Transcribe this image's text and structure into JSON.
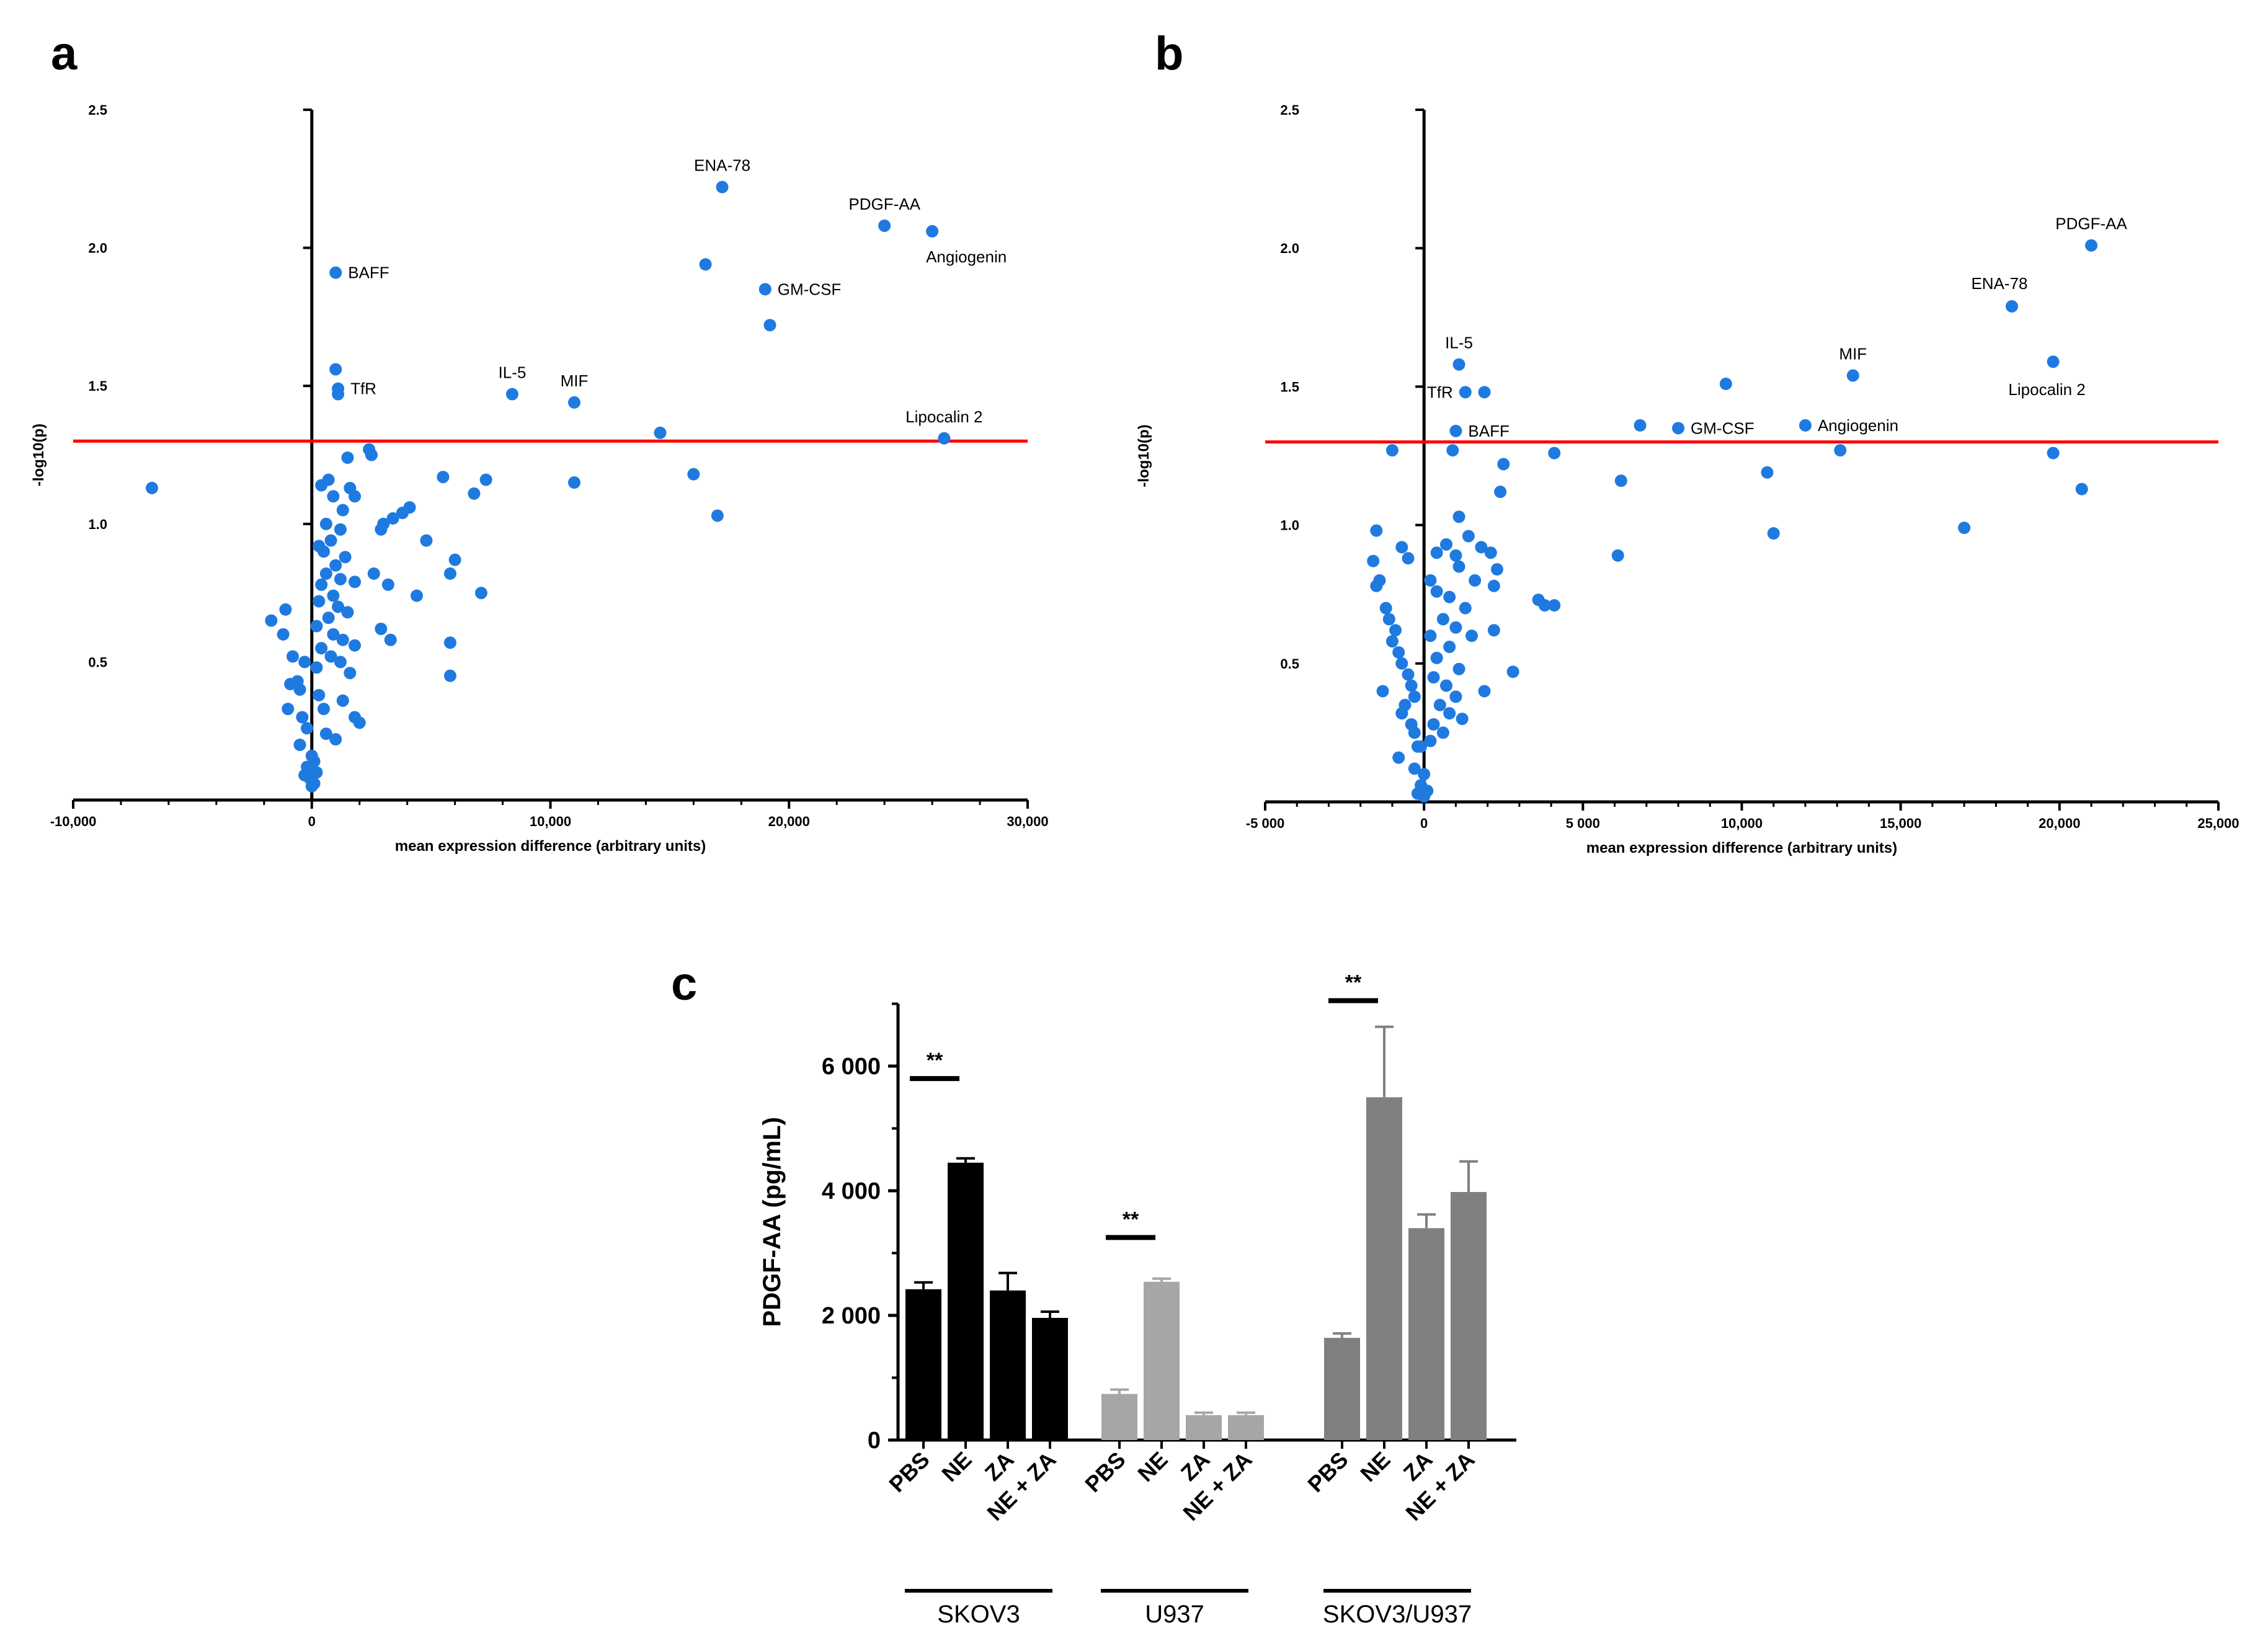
{
  "colors": {
    "point": "#1f7ae0",
    "threshold": "#ff0000",
    "axis": "#000000",
    "bar_skov3": "#000000",
    "bar_u937": "#a6a6a8",
    "bar_mix": "#808080"
  },
  "chart_data": [
    {
      "panel": "a",
      "type": "scatter",
      "xlabel": "mean expression difference (arbitrary units)",
      "ylabel": "-log10(p)",
      "xlim": [
        -10000,
        30000
      ],
      "ylim": [
        0,
        2.5
      ],
      "xticks": [
        -10000,
        0,
        10000,
        20000,
        30000
      ],
      "xtick_labels": [
        "-10,000",
        "0",
        "10,000",
        "20,000",
        "30,000"
      ],
      "yticks": [
        0.5,
        1.0,
        1.5,
        2.0,
        2.5
      ],
      "ytick_labels": [
        "0.5",
        "1.0",
        "1.5",
        "2.0",
        "2.5"
      ],
      "threshold": 1.3,
      "points": [
        [
          17200,
          2.22
        ],
        [
          24000,
          2.08
        ],
        [
          26000,
          2.06
        ],
        [
          1000,
          1.91
        ],
        [
          16500,
          1.94
        ],
        [
          19000,
          1.85
        ],
        [
          19200,
          1.72
        ],
        [
          1000,
          1.56
        ],
        [
          1100,
          1.49
        ],
        [
          1100,
          1.47
        ],
        [
          8400,
          1.47
        ],
        [
          11000,
          1.44
        ],
        [
          14600,
          1.33
        ],
        [
          26500,
          1.31
        ],
        [
          -6700,
          1.13
        ],
        [
          16000,
          1.18
        ],
        [
          17000,
          1.03
        ],
        [
          11000,
          1.15
        ],
        [
          2400,
          1.27
        ],
        [
          2500,
          1.25
        ],
        [
          1500,
          1.24
        ],
        [
          5500,
          1.17
        ],
        [
          7300,
          1.16
        ],
        [
          6800,
          1.11
        ],
        [
          4100,
          1.06
        ],
        [
          3800,
          1.04
        ],
        [
          3400,
          1.02
        ],
        [
          3000,
          1.0
        ],
        [
          2900,
          0.98
        ],
        [
          4800,
          0.94
        ],
        [
          6000,
          0.87
        ],
        [
          5800,
          0.82
        ],
        [
          7100,
          0.75
        ],
        [
          4400,
          0.74
        ],
        [
          3200,
          0.78
        ],
        [
          2600,
          0.82
        ],
        [
          3300,
          0.58
        ],
        [
          5800,
          0.57
        ],
        [
          5800,
          0.45
        ],
        [
          2900,
          0.62
        ],
        [
          2000,
          0.28
        ],
        [
          1800,
          0.3
        ],
        [
          700,
          1.16
        ],
        [
          400,
          1.14
        ],
        [
          900,
          1.1
        ],
        [
          1600,
          1.13
        ],
        [
          1800,
          1.1
        ],
        [
          1300,
          1.05
        ],
        [
          600,
          1.0
        ],
        [
          1200,
          0.98
        ],
        [
          800,
          0.94
        ],
        [
          500,
          0.9
        ],
        [
          1400,
          0.88
        ],
        [
          1000,
          0.85
        ],
        [
          600,
          0.82
        ],
        [
          1200,
          0.8
        ],
        [
          400,
          0.78
        ],
        [
          1800,
          0.79
        ],
        [
          900,
          0.74
        ],
        [
          300,
          0.72
        ],
        [
          1100,
          0.7
        ],
        [
          700,
          0.66
        ],
        [
          1500,
          0.68
        ],
        [
          200,
          0.63
        ],
        [
          900,
          0.6
        ],
        [
          1300,
          0.58
        ],
        [
          400,
          0.55
        ],
        [
          1800,
          0.56
        ],
        [
          800,
          0.52
        ],
        [
          1200,
          0.5
        ],
        [
          200,
          0.48
        ],
        [
          1600,
          0.46
        ],
        [
          -1100,
          0.69
        ],
        [
          -1700,
          0.65
        ],
        [
          -1200,
          0.6
        ],
        [
          -800,
          0.52
        ],
        [
          -300,
          0.5
        ],
        [
          -900,
          0.42
        ],
        [
          -500,
          0.4
        ],
        [
          -1000,
          0.33
        ],
        [
          -400,
          0.3
        ],
        [
          -200,
          0.26
        ],
        [
          300,
          0.38
        ],
        [
          500,
          0.33
        ],
        [
          -500,
          0.2
        ],
        [
          0,
          0.16
        ],
        [
          100,
          0.14
        ],
        [
          -200,
          0.12
        ],
        [
          200,
          0.1
        ],
        [
          -100,
          0.08
        ],
        [
          0,
          0.05
        ],
        [
          100,
          0.06
        ],
        [
          -300,
          0.09
        ],
        [
          600,
          0.24
        ],
        [
          -600,
          0.43
        ],
        [
          1000,
          0.22
        ],
        [
          1300,
          0.36
        ],
        [
          300,
          0.92
        ]
      ],
      "annotations": [
        {
          "text": "ENA-78",
          "x": 17200,
          "y": 2.22,
          "pos": "above"
        },
        {
          "text": "PDGF-AA",
          "x": 24000,
          "y": 2.08,
          "pos": "above"
        },
        {
          "text": "Angiogenin",
          "x": 26000,
          "y": 2.06,
          "pos": "below"
        },
        {
          "text": "BAFF",
          "x": 1000,
          "y": 1.91,
          "pos": "right"
        },
        {
          "text": "GM-CSF",
          "x": 19000,
          "y": 1.85,
          "pos": "right"
        },
        {
          "text": "TfR",
          "x": 1100,
          "y": 1.49,
          "pos": "right"
        },
        {
          "text": "IL-5",
          "x": 8400,
          "y": 1.47,
          "pos": "above"
        },
        {
          "text": "MIF",
          "x": 11000,
          "y": 1.44,
          "pos": "above"
        },
        {
          "text": "Lipocalin 2",
          "x": 26500,
          "y": 1.31,
          "pos": "above"
        }
      ]
    },
    {
      "panel": "b",
      "type": "scatter",
      "xlabel": "mean expression difference (arbitrary units)",
      "ylabel": "-log10(p)",
      "xlim": [
        -5000,
        25000
      ],
      "ylim": [
        0,
        2.5
      ],
      "xticks": [
        -5000,
        0,
        5000,
        10000,
        15000,
        20000,
        25000
      ],
      "xtick_labels": [
        "-5 000",
        "0",
        "5 000",
        "10,000",
        "15,000",
        "20,000",
        "25,000"
      ],
      "yticks": [
        0.5,
        1.0,
        1.5,
        2.0,
        2.5
      ],
      "ytick_labels": [
        "0.5",
        "1.0",
        "1.5",
        "2.0",
        "2.5"
      ],
      "threshold": 1.3,
      "points": [
        [
          21000,
          2.01
        ],
        [
          18500,
          1.79
        ],
        [
          19800,
          1.59
        ],
        [
          1100,
          1.58
        ],
        [
          13500,
          1.54
        ],
        [
          1300,
          1.48
        ],
        [
          1900,
          1.48
        ],
        [
          9500,
          1.51
        ],
        [
          1000,
          1.34
        ],
        [
          6800,
          1.36
        ],
        [
          8000,
          1.35
        ],
        [
          12000,
          1.36
        ],
        [
          19800,
          1.26
        ],
        [
          13100,
          1.27
        ],
        [
          20700,
          1.13
        ],
        [
          10800,
          1.19
        ],
        [
          11000,
          0.97
        ],
        [
          17000,
          0.99
        ],
        [
          6200,
          1.16
        ],
        [
          6100,
          0.89
        ],
        [
          4100,
          1.26
        ],
        [
          2500,
          1.22
        ],
        [
          2400,
          1.12
        ],
        [
          -1000,
          1.27
        ],
        [
          900,
          1.27
        ],
        [
          3800,
          0.71
        ],
        [
          4100,
          0.71
        ],
        [
          3600,
          0.73
        ],
        [
          2800,
          0.47
        ],
        [
          2200,
          0.62
        ],
        [
          1100,
          1.03
        ],
        [
          1400,
          0.96
        ],
        [
          1800,
          0.92
        ],
        [
          2100,
          0.9
        ],
        [
          2300,
          0.84
        ],
        [
          1600,
          0.8
        ],
        [
          2200,
          0.78
        ],
        [
          1000,
          0.89
        ],
        [
          700,
          0.93
        ],
        [
          1100,
          0.85
        ],
        [
          400,
          0.9
        ],
        [
          800,
          0.74
        ],
        [
          1300,
          0.7
        ],
        [
          600,
          0.66
        ],
        [
          1000,
          0.63
        ],
        [
          200,
          0.6
        ],
        [
          800,
          0.56
        ],
        [
          400,
          0.52
        ],
        [
          1100,
          0.48
        ],
        [
          300,
          0.45
        ],
        [
          700,
          0.42
        ],
        [
          1000,
          0.38
        ],
        [
          500,
          0.35
        ],
        [
          800,
          0.32
        ],
        [
          1200,
          0.3
        ],
        [
          300,
          0.28
        ],
        [
          600,
          0.25
        ],
        [
          200,
          0.22
        ],
        [
          -100,
          0.2
        ],
        [
          -1500,
          0.98
        ],
        [
          -1600,
          0.87
        ],
        [
          -1400,
          0.8
        ],
        [
          -1500,
          0.78
        ],
        [
          -1200,
          0.7
        ],
        [
          -1100,
          0.66
        ],
        [
          -900,
          0.62
        ],
        [
          -1000,
          0.58
        ],
        [
          -800,
          0.54
        ],
        [
          -700,
          0.5
        ],
        [
          -500,
          0.46
        ],
        [
          -400,
          0.42
        ],
        [
          -300,
          0.38
        ],
        [
          -600,
          0.35
        ],
        [
          -700,
          0.32
        ],
        [
          -400,
          0.28
        ],
        [
          -300,
          0.25
        ],
        [
          -200,
          0.2
        ],
        [
          -800,
          0.16
        ],
        [
          -300,
          0.12
        ],
        [
          0,
          0.1
        ],
        [
          -100,
          0.06
        ],
        [
          100,
          0.04
        ],
        [
          0,
          0.02
        ],
        [
          -200,
          0.03
        ],
        [
          -700,
          0.92
        ],
        [
          -500,
          0.88
        ],
        [
          200,
          0.8
        ],
        [
          400,
          0.76
        ],
        [
          1500,
          0.6
        ],
        [
          -1300,
          0.4
        ],
        [
          1900,
          0.4
        ]
      ],
      "annotations": [
        {
          "text": "PDGF-AA",
          "x": 21000,
          "y": 2.01,
          "pos": "above"
        },
        {
          "text": "ENA-78",
          "x": 18500,
          "y": 1.79,
          "pos": "above-left"
        },
        {
          "text": "Lipocalin 2",
          "x": 19800,
          "y": 1.59,
          "pos": "below-left"
        },
        {
          "text": "IL-5",
          "x": 1100,
          "y": 1.58,
          "pos": "above"
        },
        {
          "text": "MIF",
          "x": 13500,
          "y": 1.54,
          "pos": "above"
        },
        {
          "text": "TfR",
          "x": 1300,
          "y": 1.48,
          "pos": "left"
        },
        {
          "text": "BAFF",
          "x": 1000,
          "y": 1.34,
          "pos": "right"
        },
        {
          "text": "GM-CSF",
          "x": 8000,
          "y": 1.35,
          "pos": "right"
        },
        {
          "text": "Angiogenin",
          "x": 12000,
          "y": 1.36,
          "pos": "right"
        }
      ]
    },
    {
      "panel": "c",
      "type": "bar",
      "ylabel": "PDGF-AA (pg/mL)",
      "ylim": [
        0,
        7000
      ],
      "yticks": [
        0,
        2000,
        4000,
        6000
      ],
      "ytick_labels": [
        "0",
        "2 000",
        "4 000",
        "6 000"
      ],
      "groups": [
        {
          "name": "SKOV3",
          "categories": [
            "PBS",
            "NE",
            "ZA",
            "NE + ZA"
          ],
          "values": [
            2420,
            4450,
            2400,
            1960
          ],
          "errors": [
            110,
            70,
            280,
            100
          ],
          "significance": {
            "label": "**",
            "bar_y": 5800,
            "over": [
              0,
              1
            ]
          }
        },
        {
          "name": "U937",
          "categories": [
            "PBS",
            "NE",
            "ZA",
            "NE + ZA"
          ],
          "values": [
            740,
            2540,
            400,
            400
          ],
          "errors": [
            70,
            50,
            40,
            40
          ],
          "significance": {
            "label": "**",
            "bar_y": 3250,
            "over": [
              0,
              1
            ]
          }
        },
        {
          "name": "SKOV3/U937",
          "categories": [
            "PBS",
            "NE",
            "ZA",
            "NE + ZA"
          ],
          "values": [
            1640,
            5500,
            3400,
            3980
          ],
          "errors": [
            70,
            1130,
            220,
            490
          ],
          "significance": {
            "label": "**",
            "bar_y": 7050,
            "over": [
              0,
              1
            ]
          }
        }
      ]
    }
  ]
}
